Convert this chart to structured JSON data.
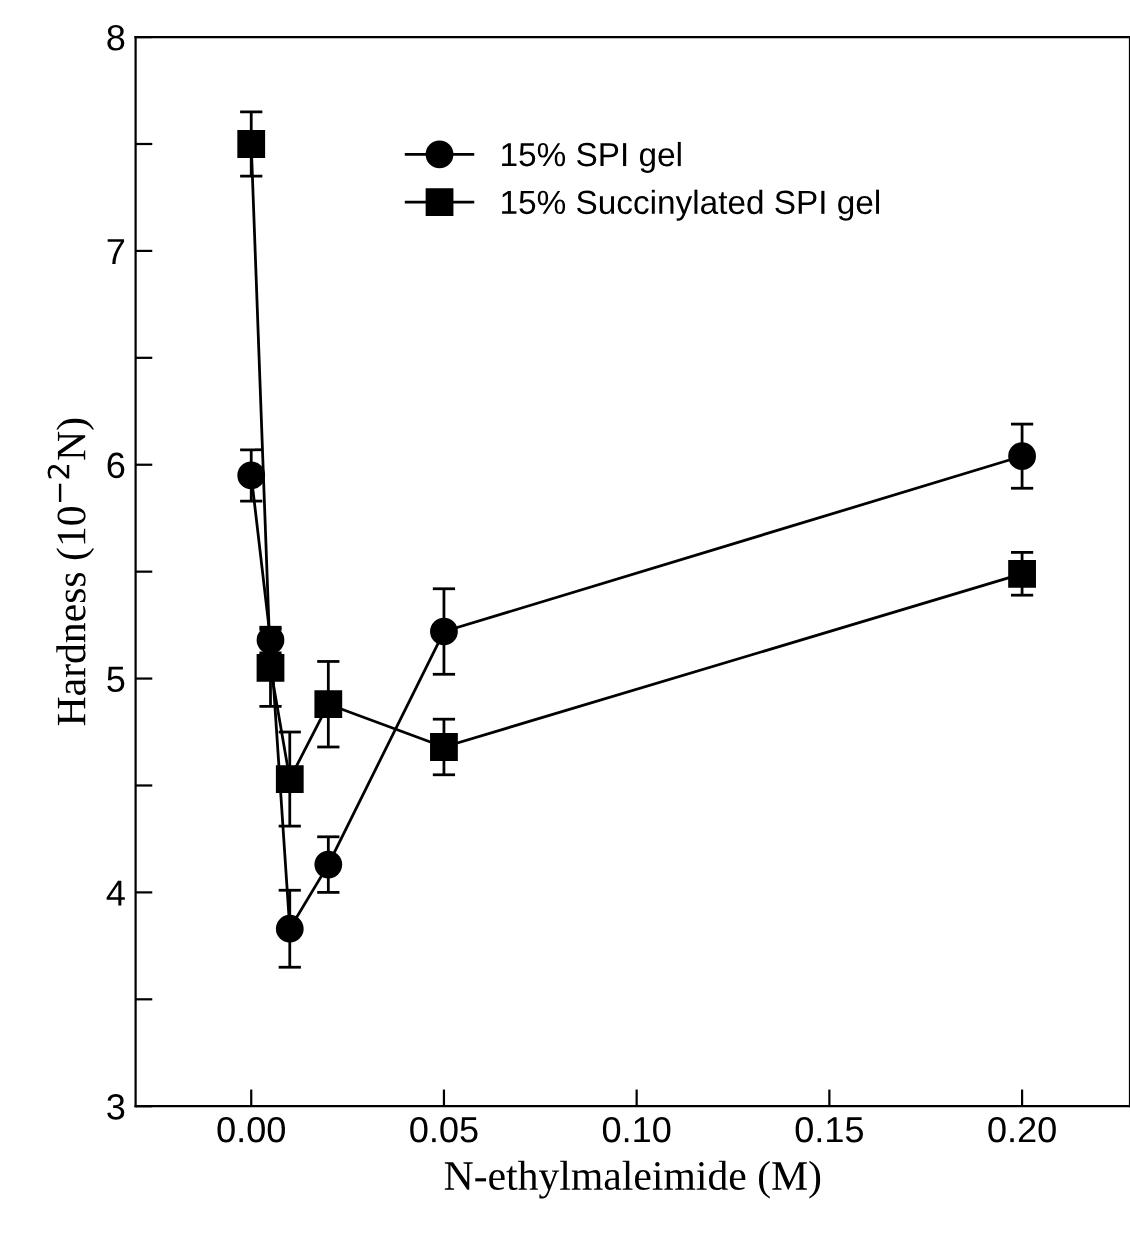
{
  "chart_data": {
    "type": "line",
    "xlabel": "N-ethylmaleimide (M)",
    "ylabel": "Hardness (10$^{−2}$N)",
    "x": [
      0,
      0.005,
      0.01,
      0.02,
      0.05,
      0.2
    ],
    "series": [
      {
        "name": "15% SPI gel",
        "color": "#000000",
        "marker": "circle",
        "values": [
          5.95,
          5.18,
          3.83,
          4.13,
          5.22,
          6.04
        ],
        "errors": [
          0.12,
          0.06,
          0.18,
          0.13,
          0.2,
          0.15
        ]
      },
      {
        "name": "15% Succinylated SPI gel",
        "color": "#000000",
        "marker": "square",
        "values": [
          7.5,
          5.05,
          4.53,
          4.88,
          4.68,
          5.49
        ],
        "errors": [
          0.15,
          0.18,
          0.22,
          0.2,
          0.13,
          0.1
        ]
      }
    ],
    "xlim": [
      -0.03,
      0.228
    ],
    "ylim": [
      3,
      8
    ],
    "xticks": [
      {
        "value": 0,
        "label": "0.00"
      },
      {
        "value": 0.05,
        "label": "0.05"
      },
      {
        "value": 0.1,
        "label": "0.10"
      },
      {
        "value": 0.15,
        "label": "0.15"
      },
      {
        "value": 0.2,
        "label": "0.20"
      }
    ],
    "yticks": [
      3,
      {
        "value": 3.5,
        "label": null
      },
      4,
      {
        "value": 4.5,
        "label": null
      },
      5,
      {
        "value": 5.5,
        "label": null
      },
      6,
      {
        "value": 6.5,
        "label": null
      },
      7,
      {
        "value": 7.5,
        "label": null
      },
      8
    ],
    "legend": "top right",
    "line_style": "solid",
    "grid": false
  }
}
